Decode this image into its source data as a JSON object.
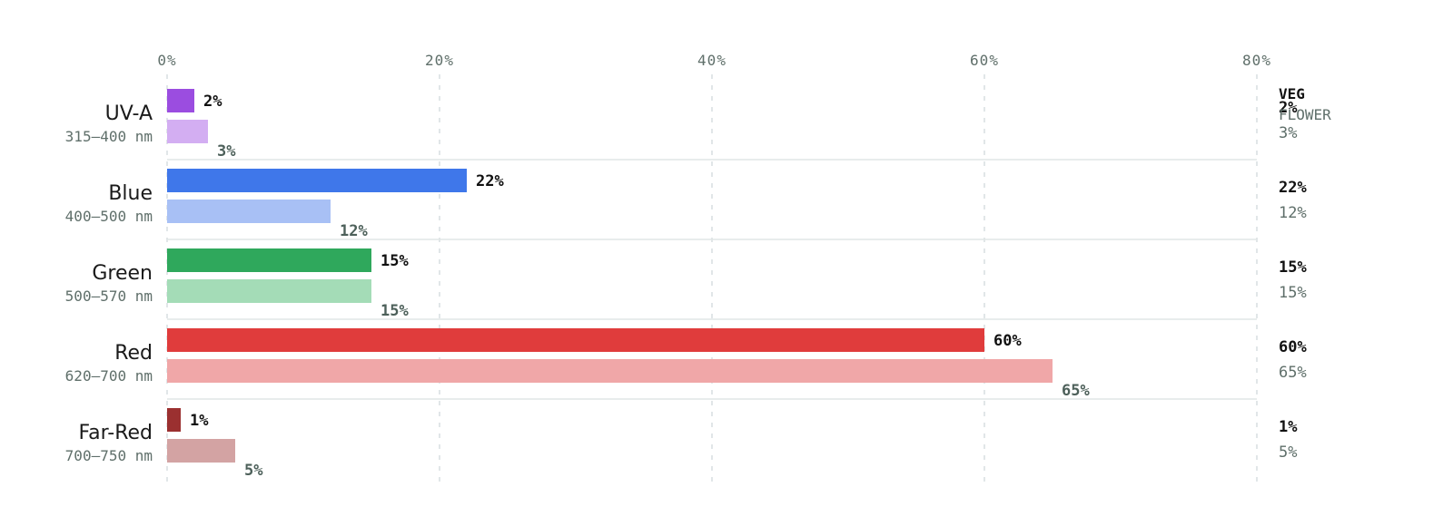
{
  "chart_data": {
    "type": "bar",
    "orientation": "horizontal",
    "categories": [
      "UV-A",
      "Blue",
      "Green",
      "Red",
      "Far-Red"
    ],
    "category_ranges": [
      "315–400 nm",
      "400–500 nm",
      "500–570 nm",
      "620–700 nm",
      "700–750 nm"
    ],
    "series": [
      {
        "name": "VEG",
        "values": [
          2,
          22,
          15,
          60,
          1
        ]
      },
      {
        "name": "FLOWER",
        "values": [
          3,
          12,
          15,
          65,
          5
        ]
      }
    ],
    "value_labels": {
      "VEG": [
        "2%",
        "22%",
        "15%",
        "60%",
        "1%"
      ],
      "FLOWER": [
        "3%",
        "12%",
        "15%",
        "65%",
        "5%"
      ]
    },
    "colors": {
      "VEG": [
        "#9b4de0",
        "#3f77ea",
        "#2fa85c",
        "#e03c3c",
        "#9b3030"
      ],
      "FLOWER": [
        "#d3aef2",
        "#a8c0f5",
        "#a4dcb7",
        "#f0a7a8",
        "#d3a3a3"
      ]
    },
    "x_ticks": [
      "0%",
      "20%",
      "40%",
      "60%",
      "80%"
    ],
    "xlim": [
      0,
      80
    ],
    "grid": true,
    "legend": [
      "VEG",
      "FLOWER"
    ],
    "legend_placement": "right"
  }
}
